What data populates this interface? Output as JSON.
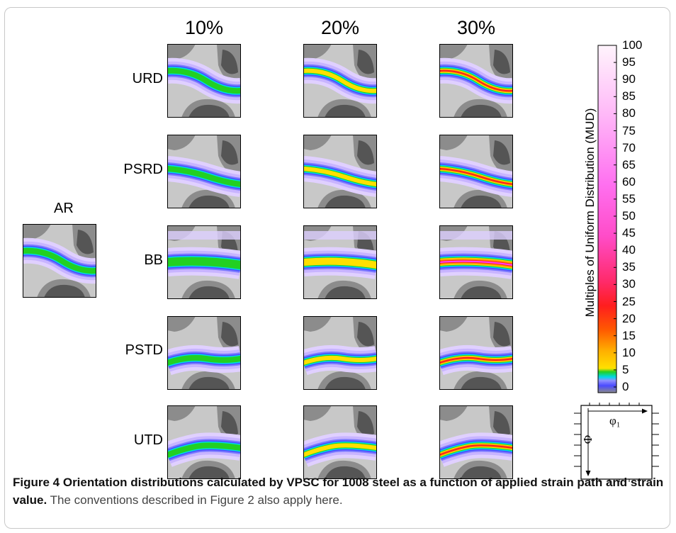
{
  "columns": [
    "10%",
    "20%",
    "30%"
  ],
  "rows": [
    "URD",
    "PSRD",
    "BB",
    "PSTD",
    "UTD"
  ],
  "ar_label": "AR",
  "colorbar": {
    "title": "Multiples of Uniform Distribution (MUD)",
    "ticks": [
      "100",
      "95",
      "90",
      "85",
      "80",
      "75",
      "70",
      "65",
      "60",
      "55",
      "50",
      "45",
      "40",
      "35",
      "30",
      "25",
      "20",
      "15",
      "10",
      "5",
      "0"
    ]
  },
  "legend_key": {
    "phi1": "φ₁",
    "Phi": "Φ"
  },
  "caption": {
    "bold": "Figure 4 Orientation distributions calculated by VPSC for 1008 steel as a function of applied strain path and strain value.",
    "normal": " The conventions described in Figure 2 also apply here."
  },
  "colors": {
    "dark_gray": "#555555",
    "mid_gray": "#8c8c8c",
    "light_gray": "#c8c8c8",
    "lavender": "#c8b4ff",
    "blue": "#4a4aff",
    "cyan": "#00d8e8",
    "green": "#22d022",
    "yellow": "#ffe000",
    "orange": "#ff9a00",
    "red": "#ff1e1e",
    "magenta": "#ff40ff"
  }
}
